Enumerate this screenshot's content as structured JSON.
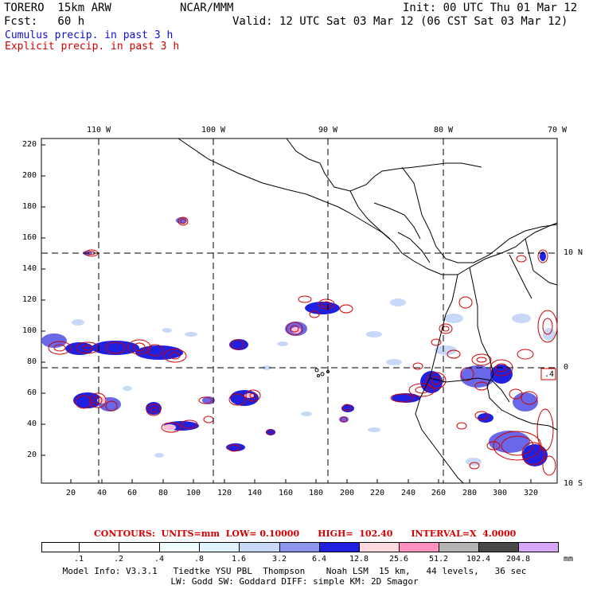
{
  "header": {
    "model_label": "TORERO  15km ARW",
    "center": "NCAR/MMM",
    "init": "Init: 00 UTC Thu 01 Mar 12",
    "fcst": "Fcst:   60 h",
    "valid": "Valid: 12 UTC Sat 03 Mar 12 (06 CST Sat 03 Mar 12)",
    "cumulus_label": "Cumulus precip. in past 3 h",
    "explicit_label": "Explicit precip. in past 3 h"
  },
  "colors": {
    "cumulus": "#1010c8",
    "explicit": "#d00000",
    "grid": "#000000"
  },
  "axes": {
    "lon_labels": [
      "110 W",
      "100 W",
      "90 W",
      "80 W",
      "70 W"
    ],
    "lat_labels": [
      "10 N",
      "0",
      "10 S"
    ],
    "y_ticks": [
      "220",
      "200",
      "180",
      "160",
      "140",
      "120",
      "100",
      "80",
      "60",
      "40",
      "20"
    ],
    "x_ticks": [
      "20",
      "40",
      "60",
      "80",
      "100",
      "120",
      "140",
      "160",
      "180",
      "200",
      "220",
      "240",
      "260",
      "280",
      "300",
      "320"
    ]
  },
  "contours_info": "CONTOURS:  UNITS=mm  LOW= 0.10000      HIGH=  102.40      INTERVAL=X  4.0000",
  "colorbar": {
    "unit": "mm",
    "colors": [
      "#ffffff",
      "#ffffff",
      "#ffffff",
      "#f0ffff",
      "#e0f4ff",
      "#c8d8f8",
      "#a0a8f0",
      "#6868e8",
      "#2020e0",
      "#ffd8e0",
      "#ff90c0",
      "#b4b4b4",
      "#484848",
      "#d8a8f8"
    ],
    "labels": [
      ".1",
      ".2",
      ".4",
      ".8",
      "1.6",
      "3.2",
      "6.4",
      "12.8",
      "25.6",
      "51.2",
      "102.4",
      "204.8"
    ]
  },
  "footer": {
    "line1": "Model Info: V3.3.1   Tiedtke YSU PBL  Thompson    Noah LSM  15 km,   44 levels,   36 sec",
    "line2": "LW: Godd SW: Goddard DIFF: simple KM: 2D Smagor"
  },
  "map_labels": {
    "high_marker": ".4"
  }
}
